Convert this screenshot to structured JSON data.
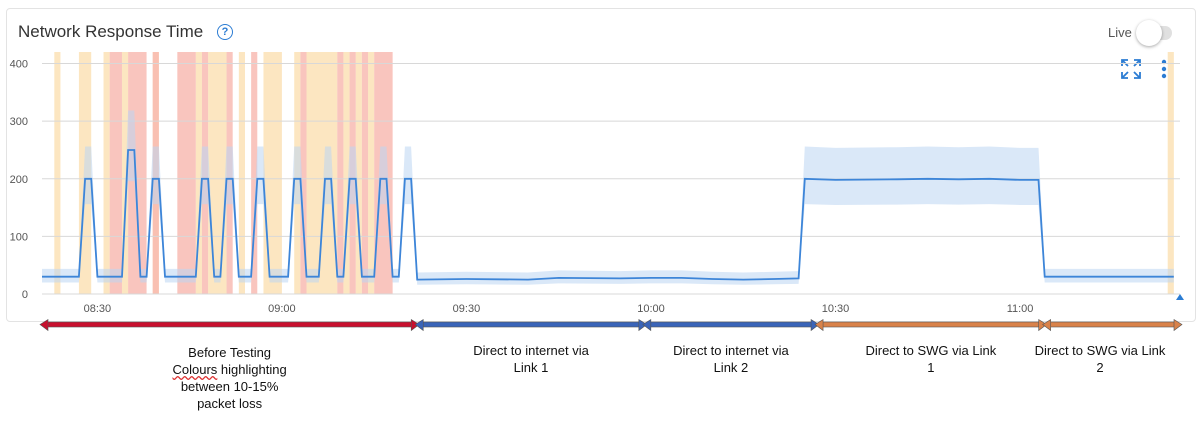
{
  "header": {
    "title": "Network Response Time",
    "help_icon": "help-circle-icon",
    "live_label": "Live",
    "live_on": false,
    "expand_icon": "expand-icon",
    "more_icon": "more-vert-icon"
  },
  "colors": {
    "line": "#3d85d8",
    "band": "#bcd6f2",
    "red_highlight": "#f7b7ae",
    "orange_highlight": "#fbe2b6",
    "arrow_red": "#c8102e",
    "arrow_blue": "#3a64b8",
    "arrow_orange": "#d9824a"
  },
  "chart_data": {
    "type": "line",
    "x_axis": {
      "ticks": [
        "08:30",
        "09:00",
        "09:30",
        "10:00",
        "10:30",
        "11:00"
      ],
      "range": [
        "08:21",
        "11:26"
      ]
    },
    "y_axis": {
      "ticks": [
        0,
        100,
        200,
        300,
        400
      ],
      "ylim": [
        0,
        420
      ]
    },
    "grid": true,
    "series": [
      {
        "points": [
          [
            "08:21",
            30
          ],
          [
            "08:27",
            30
          ],
          [
            "08:28",
            200
          ],
          [
            "08:29",
            200
          ],
          [
            "08:30",
            30
          ],
          [
            "08:34",
            30
          ],
          [
            "08:35",
            250
          ],
          [
            "08:36",
            250
          ],
          [
            "08:37",
            30
          ],
          [
            "08:38",
            30
          ],
          [
            "08:39",
            200
          ],
          [
            "08:40",
            200
          ],
          [
            "08:41",
            30
          ],
          [
            "08:46",
            30
          ],
          [
            "08:47",
            200
          ],
          [
            "08:48",
            200
          ],
          [
            "08:49",
            30
          ],
          [
            "08:50",
            30
          ],
          [
            "08:51",
            200
          ],
          [
            "08:52",
            200
          ],
          [
            "08:53",
            30
          ],
          [
            "08:55",
            30
          ],
          [
            "08:56",
            200
          ],
          [
            "08:57",
            200
          ],
          [
            "08:58",
            30
          ],
          [
            "09:01",
            30
          ],
          [
            "09:02",
            200
          ],
          [
            "09:03",
            200
          ],
          [
            "09:04",
            30
          ],
          [
            "09:06",
            30
          ],
          [
            "09:07",
            200
          ],
          [
            "09:08",
            200
          ],
          [
            "09:09",
            30
          ],
          [
            "09:10",
            30
          ],
          [
            "09:11",
            200
          ],
          [
            "09:12",
            200
          ],
          [
            "09:13",
            30
          ],
          [
            "09:15",
            30
          ],
          [
            "09:16",
            200
          ],
          [
            "09:17",
            200
          ],
          [
            "09:18",
            30
          ],
          [
            "09:19",
            30
          ],
          [
            "09:20",
            200
          ],
          [
            "09:21",
            200
          ],
          [
            "09:22",
            25
          ],
          [
            "09:30",
            26
          ],
          [
            "09:40",
            25
          ],
          [
            "09:45",
            28
          ],
          [
            "09:55",
            27
          ],
          [
            "10:00",
            28
          ],
          [
            "10:05",
            28
          ],
          [
            "10:10",
            26
          ],
          [
            "10:15",
            25
          ],
          [
            "10:20",
            26
          ],
          [
            "10:24",
            27
          ],
          [
            "10:25",
            200
          ],
          [
            "10:30",
            198
          ],
          [
            "10:40",
            199
          ],
          [
            "10:45",
            200
          ],
          [
            "10:50",
            199
          ],
          [
            "10:55",
            200
          ],
          [
            "11:00",
            198
          ],
          [
            "11:03",
            198
          ],
          [
            "11:04",
            30
          ],
          [
            "11:10",
            30
          ],
          [
            "11:20",
            30
          ],
          [
            "11:25",
            30
          ]
        ]
      }
    ],
    "highlights_red": [
      [
        "08:32",
        "08:34"
      ],
      [
        "08:35",
        "08:38"
      ],
      [
        "08:39",
        "08:40"
      ],
      [
        "08:43",
        "08:46"
      ],
      [
        "08:47",
        "08:48"
      ],
      [
        "08:51",
        "08:52"
      ],
      [
        "08:55",
        "08:56"
      ],
      [
        "09:03",
        "09:04"
      ],
      [
        "09:09",
        "09:10"
      ],
      [
        "09:11",
        "09:12"
      ],
      [
        "09:13",
        "09:14"
      ],
      [
        "09:15",
        "09:18"
      ]
    ],
    "highlights_orange": [
      [
        "08:23",
        "08:24"
      ],
      [
        "08:27",
        "08:29"
      ],
      [
        "08:31",
        "08:32"
      ],
      [
        "08:34",
        "08:35"
      ],
      [
        "08:39",
        "08:40"
      ],
      [
        "08:46",
        "08:47"
      ],
      [
        "08:48",
        "08:51"
      ],
      [
        "08:53",
        "08:54"
      ],
      [
        "08:57",
        "09:00"
      ],
      [
        "09:02",
        "09:03"
      ],
      [
        "09:04",
        "09:09"
      ],
      [
        "09:10",
        "09:11"
      ],
      [
        "09:12",
        "09:13"
      ],
      [
        "09:14",
        "09:15"
      ],
      [
        "11:24",
        "11:25"
      ]
    ]
  },
  "segments": [
    {
      "from": "08:21",
      "to": "09:22",
      "color_key": "arrow_red",
      "lines": [
        "Before Testing",
        "Colours highlighting",
        "between 10-15%",
        "packet loss"
      ]
    },
    {
      "from": "09:22",
      "to": "09:59",
      "color_key": "arrow_blue",
      "lines": [
        "Direct to internet via",
        "Link 1"
      ]
    },
    {
      "from": "09:59",
      "to": "10:27",
      "color_key": "arrow_blue",
      "lines": [
        "Direct to internet via",
        "Link 2"
      ]
    },
    {
      "from": "10:27",
      "to": "11:04",
      "color_key": "arrow_orange",
      "lines": [
        "Direct to SWG via Link",
        "1"
      ]
    },
    {
      "from": "11:04",
      "to": "11:26",
      "color_key": "arrow_orange",
      "lines": [
        "Direct to SWG via Link",
        "2"
      ]
    }
  ]
}
